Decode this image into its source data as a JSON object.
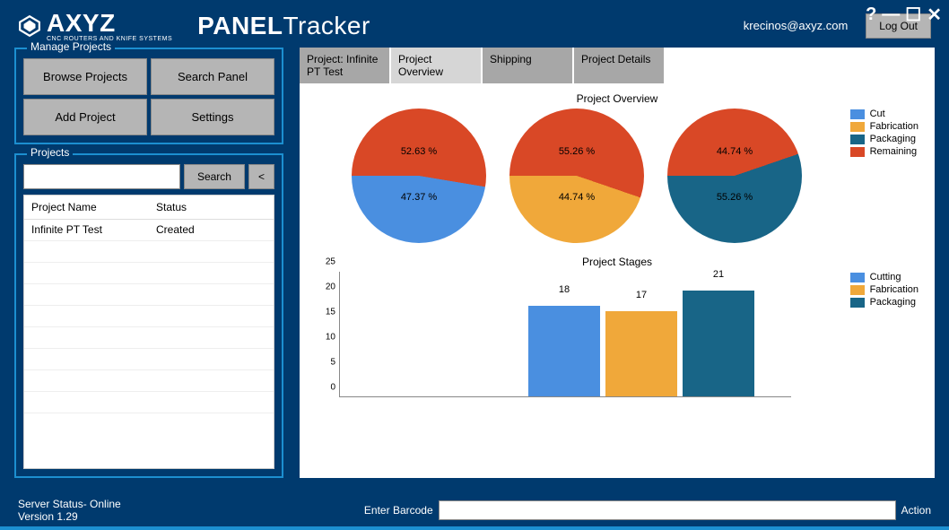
{
  "window": {
    "help": "?",
    "min": "—",
    "max": "☐",
    "close": "✕"
  },
  "brand": {
    "name": "AXYZ",
    "sub": "CNC ROUTERS AND KNIFE SYSTEMS"
  },
  "app": {
    "title_bold": "PANEL",
    "title_light": "Tracker"
  },
  "user": {
    "email": "krecinos@axyz.com",
    "logout": "Log Out"
  },
  "manage": {
    "title": "Manage Projects",
    "browse": "Browse Projects",
    "search_panel": "Search Panel",
    "add": "Add Project",
    "settings": "Settings"
  },
  "projects": {
    "title": "Projects",
    "search": "Search",
    "back": "<",
    "cols": {
      "name": "Project Name",
      "status": "Status"
    },
    "rows": [
      {
        "name": "Infinite PT Test",
        "status": "Created"
      }
    ]
  },
  "tabs": {
    "t0": "Project: Infinite PT Test",
    "t1": "Project Overview",
    "t2": "Shipping",
    "t3": "Project Details"
  },
  "overview": {
    "title": "Project Overview",
    "legend": {
      "cut": "Cut",
      "fab": "Fabrication",
      "pack": "Packaging",
      "rem": "Remaining"
    },
    "colors": {
      "cut": "#4a8fe0",
      "fab": "#f0a83a",
      "pack": "#186587",
      "rem": "#d94826"
    },
    "pies": [
      {
        "top_pct": 52.63,
        "bottom_pct": 47.37,
        "top_color": "#d94826",
        "bottom_color": "#4a8fe0",
        "top_label": "52.63 %",
        "bottom_label": "47.37 %"
      },
      {
        "top_pct": 55.26,
        "bottom_pct": 44.74,
        "top_color": "#d94826",
        "bottom_color": "#f0a83a",
        "top_label": "55.26 %",
        "bottom_label": "44.74 %"
      },
      {
        "top_pct": 44.74,
        "bottom_pct": 55.26,
        "top_color": "#d94826",
        "bottom_color": "#186587",
        "top_label": "44.74 %",
        "bottom_label": "55.26 %"
      }
    ]
  },
  "stages": {
    "title": "Project Stages",
    "legend": {
      "cutting": "Cutting",
      "fab": "Fabrication",
      "pack": "Packaging"
    },
    "colors": {
      "cutting": "#4a8fe0",
      "fab": "#f0a83a",
      "pack": "#186587"
    },
    "ymax": 25,
    "ytick_step": 5,
    "bars": [
      {
        "label": "18",
        "value": 18,
        "color": "#4a8fe0"
      },
      {
        "label": "17",
        "value": 17,
        "color": "#f0a83a"
      },
      {
        "label": "21",
        "value": 21,
        "color": "#186587"
      }
    ]
  },
  "footer": {
    "status": "Server Status- Online",
    "version": "Version 1.29",
    "barcode_label": "Enter Barcode",
    "action": "Action"
  }
}
